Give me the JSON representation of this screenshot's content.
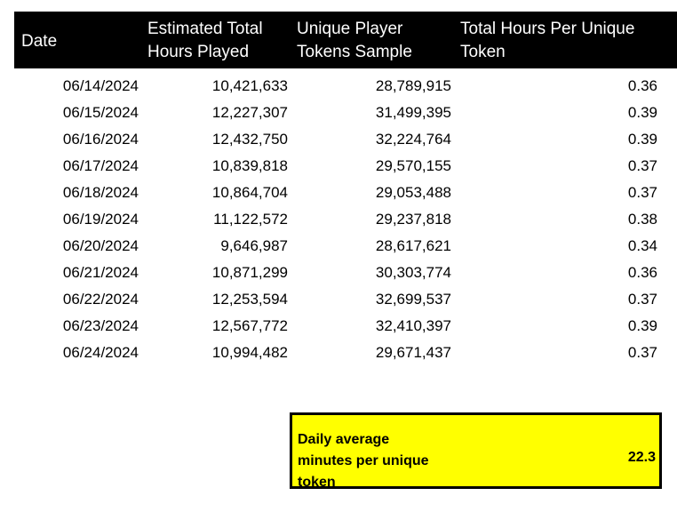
{
  "table": {
    "headers": {
      "date": "Date",
      "hours_line1": "Estimated Total",
      "hours_line2": "Hours Played",
      "tokens_line1": "Unique Player",
      "tokens_line2": "Tokens Sample",
      "per_line1": "Total Hours Per Unique",
      "per_line2": "Token"
    },
    "rows": [
      {
        "date": "06/14/2024",
        "hours": "10,421,633",
        "tokens": "28,789,915",
        "per": "0.36"
      },
      {
        "date": "06/15/2024",
        "hours": "12,227,307",
        "tokens": "31,499,395",
        "per": "0.39"
      },
      {
        "date": "06/16/2024",
        "hours": "12,432,750",
        "tokens": "32,224,764",
        "per": "0.39"
      },
      {
        "date": "06/17/2024",
        "hours": "10,839,818",
        "tokens": "29,570,155",
        "per": "0.37"
      },
      {
        "date": "06/18/2024",
        "hours": "10,864,704",
        "tokens": "29,053,488",
        "per": "0.37"
      },
      {
        "date": "06/19/2024",
        "hours": "11,122,572",
        "tokens": "29,237,818",
        "per": "0.38"
      },
      {
        "date": "06/20/2024",
        "hours": "9,646,987",
        "tokens": "28,617,621",
        "per": "0.34"
      },
      {
        "date": "06/21/2024",
        "hours": "10,871,299",
        "tokens": "30,303,774",
        "per": "0.36"
      },
      {
        "date": "06/22/2024",
        "hours": "12,253,594",
        "tokens": "32,699,537",
        "per": "0.37"
      },
      {
        "date": "06/23/2024",
        "hours": "12,567,772",
        "tokens": "32,410,397",
        "per": "0.39"
      },
      {
        "date": "06/24/2024",
        "hours": "10,994,482",
        "tokens": "29,671,437",
        "per": "0.37"
      }
    ]
  },
  "summary": {
    "label_line1": "Daily average",
    "label_line2": "minutes per unique",
    "label_line3": "token",
    "value": "22.3"
  },
  "colors": {
    "header_bg": "#000000",
    "header_text": "#ffffff",
    "summary_bg": "#ffff00",
    "summary_border": "#000000"
  }
}
